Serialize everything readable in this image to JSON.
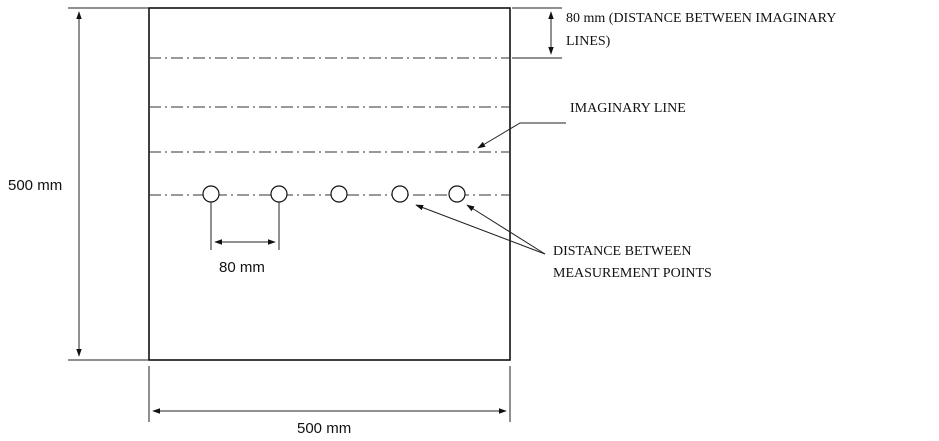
{
  "dimensions": {
    "height_label": "500 mm",
    "width_label": "500 mm",
    "point_spacing_label": "80 mm"
  },
  "annotations": {
    "line_spacing_line1": "80 mm (DISTANCE BETWEEN IMAGINARY",
    "line_spacing_line2": "LINES)",
    "imaginary_line": "IMAGINARY LINE",
    "measurement_points_line1": "DISTANCE BETWEEN",
    "measurement_points_line2": "MEASUREMENT POINTS"
  },
  "measurement_points_count": 5,
  "imaginary_lines_count": 4
}
